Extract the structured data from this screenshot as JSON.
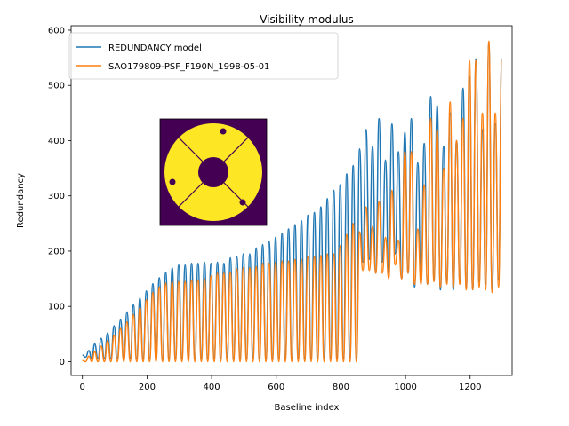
{
  "chart_data": {
    "type": "line",
    "title": "Visibility modulus",
    "xlabel": "Baseline index",
    "ylabel": "Redundancy",
    "xlim": [
      -35,
      1330
    ],
    "ylim": [
      -25,
      608
    ],
    "xticks": [
      0,
      200,
      400,
      600,
      800,
      1000,
      1200
    ],
    "yticks": [
      0,
      100,
      200,
      300,
      400,
      500,
      600
    ],
    "legend_position": "top-left",
    "series": [
      {
        "name": "REDUNDANCY model",
        "color": "#1f77b4",
        "peaks_x": [
          0,
          20,
          38,
          58,
          78,
          98,
          118,
          138,
          158,
          178,
          198,
          218,
          238,
          258,
          278,
          298,
          318,
          338,
          358,
          378,
          398,
          418,
          438,
          458,
          478,
          498,
          518,
          538,
          558,
          578,
          598,
          618,
          638,
          658,
          678,
          698,
          718,
          738,
          758,
          778,
          798,
          818,
          838,
          858,
          878,
          898,
          918,
          938,
          958,
          978,
          998,
          1018,
          1038,
          1058,
          1078,
          1098,
          1118,
          1138,
          1158,
          1178,
          1198,
          1218,
          1238,
          1258,
          1278,
          1298
        ],
        "peaks_y": [
          12,
          20,
          32,
          42,
          52,
          65,
          76,
          90,
          103,
          115,
          128,
          141,
          152,
          162,
          170,
          175,
          175,
          178,
          178,
          180,
          178,
          180,
          178,
          188,
          190,
          195,
          195,
          206,
          212,
          218,
          225,
          232,
          240,
          248,
          255,
          265,
          270,
          280,
          295,
          310,
          320,
          340,
          355,
          385,
          420,
          390,
          440,
          365,
          430,
          380,
          415,
          440,
          360,
          395,
          480,
          463,
          390,
          450,
          400,
          495,
          515,
          548,
          420,
          575,
          430,
          548
        ],
        "troughs_y": [
          8,
          5,
          5,
          5,
          5,
          5,
          5,
          5,
          5,
          5,
          5,
          5,
          5,
          5,
          5,
          5,
          5,
          5,
          5,
          5,
          5,
          5,
          5,
          5,
          5,
          5,
          5,
          5,
          5,
          5,
          5,
          5,
          5,
          5,
          5,
          5,
          5,
          5,
          5,
          5,
          5,
          5,
          5,
          180,
          185,
          160,
          180,
          160,
          195,
          150,
          160,
          135,
          145,
          140,
          150,
          130,
          145,
          130,
          145,
          135,
          130,
          145,
          140,
          130,
          150
        ]
      },
      {
        "name": "SAO179809-PSF_F190N_1998-05-01",
        "color": "#ff7f0e",
        "peaks_x": [
          0,
          20,
          38,
          58,
          78,
          98,
          118,
          138,
          158,
          178,
          198,
          218,
          238,
          258,
          278,
          298,
          318,
          338,
          358,
          378,
          398,
          418,
          438,
          458,
          478,
          498,
          518,
          538,
          558,
          578,
          598,
          618,
          638,
          658,
          678,
          698,
          718,
          738,
          758,
          778,
          798,
          818,
          838,
          858,
          878,
          898,
          918,
          938,
          958,
          978,
          998,
          1018,
          1038,
          1058,
          1078,
          1098,
          1118,
          1138,
          1158,
          1178,
          1198,
          1218,
          1238,
          1258,
          1278,
          1298
        ],
        "peaks_y": [
          2,
          10,
          18,
          28,
          38,
          48,
          60,
          72,
          85,
          98,
          112,
          125,
          135,
          142,
          145,
          145,
          145,
          148,
          148,
          150,
          155,
          160,
          160,
          162,
          168,
          170,
          170,
          172,
          178,
          178,
          180,
          182,
          182,
          185,
          185,
          190,
          190,
          192,
          195,
          195,
          210,
          230,
          250,
          235,
          280,
          245,
          290,
          225,
          310,
          220,
          380,
          380,
          240,
          320,
          440,
          420,
          350,
          470,
          400,
          440,
          545,
          545,
          450,
          580,
          450,
          545
        ],
        "troughs_y": [
          0,
          0,
          0,
          0,
          0,
          0,
          0,
          0,
          0,
          0,
          0,
          0,
          0,
          0,
          0,
          0,
          0,
          0,
          0,
          0,
          0,
          0,
          0,
          0,
          0,
          0,
          0,
          0,
          0,
          0,
          0,
          0,
          0,
          0,
          0,
          0,
          0,
          0,
          0,
          0,
          0,
          0,
          0,
          165,
          165,
          160,
          160,
          150,
          175,
          150,
          160,
          140,
          140,
          140,
          145,
          135,
          140,
          135,
          140,
          130,
          130,
          135,
          130,
          125,
          135
        ]
      }
    ]
  }
}
